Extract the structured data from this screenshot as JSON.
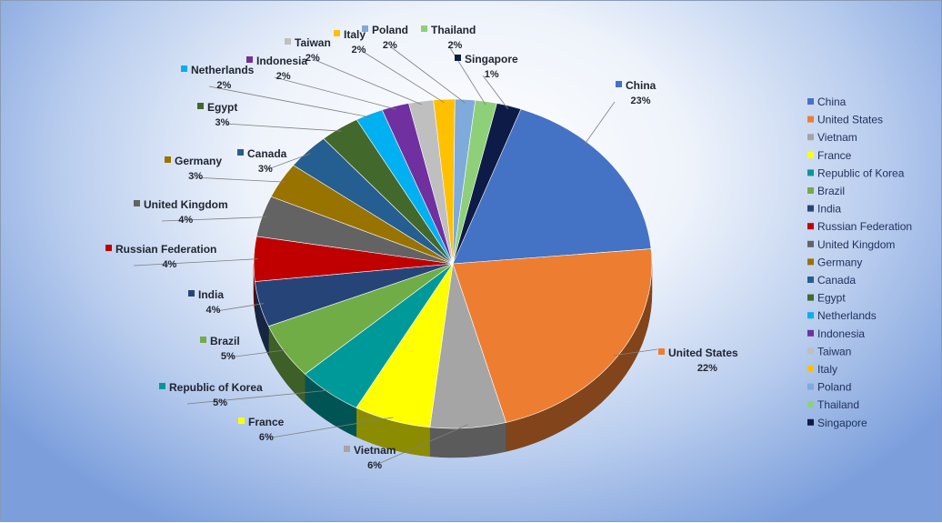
{
  "chart_data": {
    "type": "pie",
    "title": "",
    "categories": [
      "China",
      "United States",
      "Vietnam",
      "France",
      "Republic of Korea",
      "Brazil",
      "India",
      "Russian Federation",
      "United Kingdom",
      "Germany",
      "Canada",
      "Egypt",
      "Netherlands",
      "Indonesia",
      "Taiwan",
      "Italy",
      "Poland",
      "Thailand",
      "Singapore"
    ],
    "values": [
      23,
      22,
      6,
      6,
      5,
      5,
      4,
      4,
      4,
      3,
      3,
      3,
      2,
      2,
      2,
      2,
      2,
      2,
      1
    ],
    "labels": [
      "23%",
      "22%",
      "6%",
      "6%",
      "5%",
      "5%",
      "4%",
      "4%",
      "4%",
      "3%",
      "3%",
      "3%",
      "2%",
      "2%",
      "2%",
      "2%",
      "2%",
      "2%",
      "1%"
    ],
    "slice_angles": [
      [
        0,
        84.8
      ],
      [
        84.8,
        164.5
      ],
      [
        164.5,
        186.6
      ],
      [
        186.6,
        209
      ],
      [
        209,
        227.9
      ],
      [
        227.9,
        247.7
      ],
      [
        247.7,
        263.8
      ],
      [
        263.8,
        279.6
      ],
      [
        279.6,
        294.1
      ],
      [
        294.1,
        306.8
      ],
      [
        306.8,
        319.5
      ],
      [
        319.5,
        331.1
      ],
      [
        331.1,
        339.2
      ],
      [
        339.2,
        347.2
      ],
      [
        347.2,
        354.4
      ],
      [
        354.4,
        360.6
      ],
      [
        360.6,
        366.5
      ],
      [
        366.5,
        372.8
      ],
      [
        372.8,
        380
      ]
    ],
    "colors": [
      "#4472C4",
      "#ED7D31",
      "#A5A5A5",
      "#FFFF00",
      "#009999",
      "#70AD47",
      "#264478",
      "#C00000",
      "#636363",
      "#997300",
      "#255E91",
      "#43682B",
      "#00B0F0",
      "#7030A0",
      "#BFBFBF",
      "#FFC000",
      "#7FAADC",
      "#8ED07A",
      "#0D1B46"
    ],
    "legend_position": "right"
  }
}
